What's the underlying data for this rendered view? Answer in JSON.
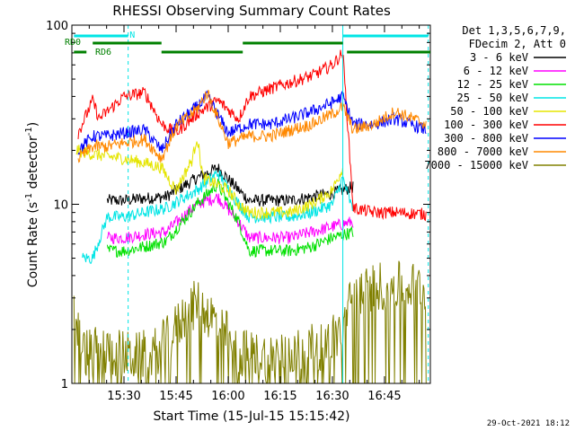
{
  "chart_data": {
    "type": "line",
    "title": "RHESSI Observing Summary Count Rates",
    "xlabel": "Start Time (15-Jul-15 15:15:42)",
    "ylabel": "Count Rate (s⁻¹ detector⁻¹)",
    "ylabel_parts": {
      "main": "Count Rate (s",
      "sup1": "-1",
      "mid": " detector",
      "sup2": "-1",
      "end": ")"
    },
    "yscale": "log",
    "ylim": [
      1,
      100
    ],
    "xlim_minutes": [
      15.25,
      16.97
    ],
    "x_ticks": [
      "15:30",
      "15:45",
      "16:00",
      "16:15",
      "16:30",
      "16:45"
    ],
    "x_tick_values": [
      15.5,
      15.75,
      16.0,
      16.25,
      16.5,
      16.75
    ],
    "y_ticks": [
      "1",
      "10",
      "100"
    ],
    "y_tick_values": [
      1,
      10,
      100
    ],
    "legend_header": [
      "Det 1,3,5,6,7,9,",
      "FDecim 2, Att 0"
    ],
    "legend_placement": "right",
    "timestamp": "29-Oct-2021 18:12",
    "flags": [
      {
        "name": "N",
        "label": "N",
        "color": "#00e5e5",
        "segments": [
          [
            15.26,
            15.52
          ],
          [
            16.55,
            16.96
          ]
        ]
      },
      {
        "name": "RD0",
        "label": "RD0",
        "color": "#008000",
        "segments": [
          [
            15.35,
            15.68
          ],
          [
            16.07,
            16.55
          ]
        ]
      },
      {
        "name": "RD6",
        "label": "RD6",
        "color": "#008000",
        "segments": [
          [
            15.26,
            15.32
          ],
          [
            15.68,
            16.07
          ],
          [
            16.57,
            16.97
          ]
        ]
      }
    ],
    "markers": [
      {
        "x": 15.52,
        "style": "dashed",
        "color": "#00e5e5"
      },
      {
        "x": 16.55,
        "style": "solid",
        "color": "#00e5e5"
      },
      {
        "x": 16.96,
        "style": "dashed",
        "color": "#00e5e5"
      }
    ],
    "series": [
      {
        "name": "3 - 6 keV",
        "color": "#000000",
        "x": [
          15.42,
          15.5,
          15.6,
          15.7,
          15.85,
          15.95,
          16.05,
          16.1,
          16.2,
          16.3,
          16.4,
          16.5,
          16.6
        ],
        "y": [
          10.5,
          10.5,
          10.8,
          11,
          14,
          16,
          12,
          10.5,
          10.5,
          10.5,
          11,
          11.5,
          12.5
        ]
      },
      {
        "name": "6 - 12 keV",
        "color": "#ff00ff",
        "x": [
          15.42,
          15.5,
          15.6,
          15.7,
          15.85,
          15.95,
          16.05,
          16.1,
          16.2,
          16.3,
          16.4,
          16.5,
          16.6
        ],
        "y": [
          6.5,
          6.5,
          6.8,
          7,
          10,
          11,
          8,
          6.5,
          6.5,
          6.5,
          7,
          7.5,
          8
        ]
      },
      {
        "name": "12 - 25 keV",
        "color": "#00e000",
        "x": [
          15.42,
          15.5,
          15.6,
          15.7,
          15.85,
          15.95,
          16.05,
          16.1,
          16.2,
          16.3,
          16.4,
          16.5,
          16.6
        ],
        "y": [
          5.5,
          5.5,
          5.8,
          6.2,
          10,
          13,
          8,
          5.5,
          5.5,
          5.5,
          5.8,
          6.5,
          7
        ]
      },
      {
        "name": "25 - 50 keV",
        "color": "#00e5e5",
        "x": [
          15.3,
          15.35,
          15.42,
          15.5,
          15.6,
          15.7,
          15.85,
          15.95,
          16.05,
          16.1,
          16.2,
          16.3,
          16.4,
          16.5,
          16.55,
          16.6
        ],
        "y": [
          5,
          5,
          8.5,
          8.5,
          9,
          9.5,
          12,
          15,
          10,
          8.5,
          8.5,
          8.5,
          9,
          10,
          14,
          9
        ]
      },
      {
        "name": "50 - 100 keV",
        "color": "#e5e500",
        "x": [
          15.27,
          15.35,
          15.5,
          15.6,
          15.68,
          15.75,
          15.83,
          15.85,
          15.88,
          16.0,
          16.05,
          16.1,
          16.2,
          16.3,
          16.4,
          16.5,
          16.55
        ],
        "y": [
          20,
          19,
          18,
          17,
          16,
          12,
          18,
          24,
          14,
          12,
          10,
          9,
          9,
          9,
          10,
          12,
          16
        ]
      },
      {
        "name": "100 - 300 keV",
        "color": "#ff0000",
        "x": [
          15.28,
          15.35,
          15.38,
          15.5,
          15.6,
          15.68,
          15.75,
          15.85,
          15.95,
          16.05,
          16.1,
          16.2,
          16.3,
          16.4,
          16.5,
          16.55,
          16.6,
          16.7,
          16.8,
          16.95
        ],
        "y": [
          25,
          38,
          30,
          40,
          42,
          28,
          25,
          32,
          38,
          30,
          40,
          44,
          48,
          52,
          60,
          70,
          9.5,
          9,
          9,
          8.8
        ]
      },
      {
        "name": "300 - 800 keV",
        "color": "#0000ff",
        "x": [
          15.28,
          15.35,
          15.42,
          15.5,
          15.6,
          15.68,
          15.75,
          15.85,
          15.9,
          16.0,
          16.1,
          16.2,
          16.3,
          16.4,
          16.5,
          16.55,
          16.6,
          16.7,
          16.8,
          16.95
        ],
        "y": [
          20,
          24,
          24,
          25,
          26,
          20,
          28,
          35,
          40,
          25,
          28,
          28,
          30,
          33,
          37,
          40,
          28,
          28,
          30,
          26
        ]
      },
      {
        "name": "800 - 7000 keV",
        "color": "#ff8800",
        "x": [
          15.28,
          15.35,
          15.42,
          15.5,
          15.6,
          15.68,
          15.75,
          15.85,
          15.9,
          16.0,
          16.1,
          16.2,
          16.3,
          16.4,
          16.5,
          16.55,
          16.6,
          16.7,
          16.8,
          16.95
        ],
        "y": [
          18,
          21,
          21,
          22,
          23,
          18,
          27,
          34,
          42,
          22,
          24,
          24,
          26,
          28,
          32,
          35,
          26,
          28,
          33,
          28
        ]
      },
      {
        "name": "7000 - 15000 keV",
        "color": "#808000",
        "x": [
          15.26,
          15.3,
          15.35,
          15.45,
          15.55,
          15.65,
          15.72,
          15.8,
          15.85,
          15.95,
          16.05,
          16.15,
          16.3,
          16.45,
          16.55,
          16.6,
          16.7,
          16.8,
          16.95
        ],
        "y": [
          2.5,
          1.5,
          1.5,
          1.5,
          1.4,
          1.5,
          1.8,
          2.5,
          2.8,
          2.2,
          1.5,
          1.4,
          1.5,
          1.6,
          2.0,
          3.2,
          3.5,
          3.5,
          3.5
        ]
      }
    ]
  }
}
